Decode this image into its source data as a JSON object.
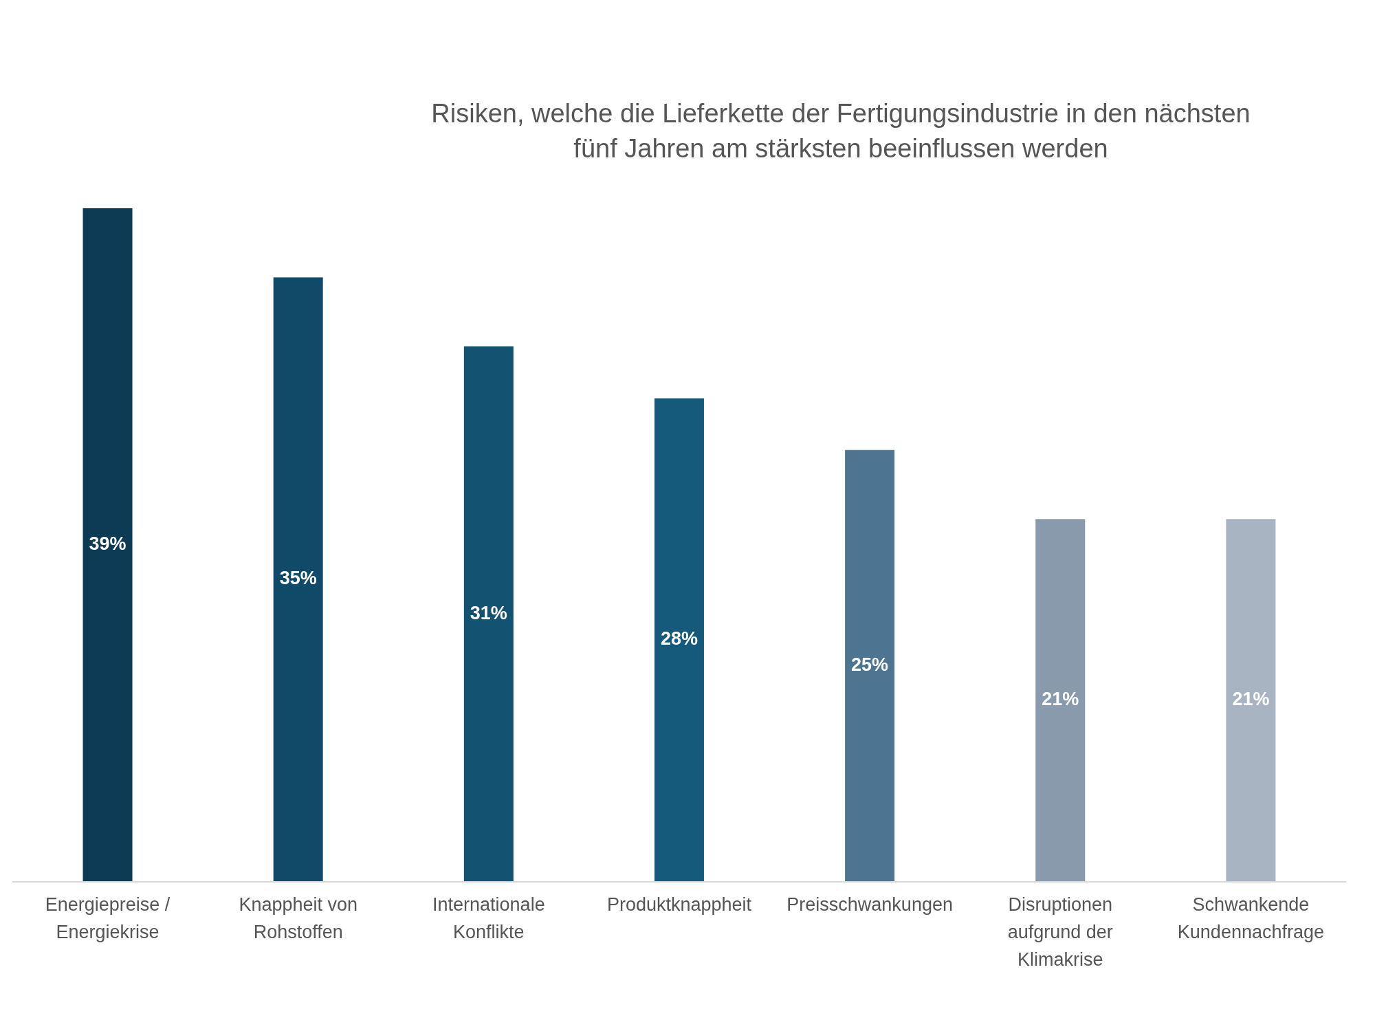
{
  "chart_data": {
    "type": "bar",
    "title": "Risiken, welche die Lieferkette der Fertigungsindustrie in den nächsten fünf Jahren am stärksten beeinflussen werden",
    "categories": [
      "Energiepreise / Energiekrise",
      "Knappheit von Rohstoffen",
      "Internationale Konflikte",
      "Produktknappheit",
      "Preisschwankungen",
      "Disruptionen aufgrund der Klimakrise",
      "Schwankende Kundennachfrage"
    ],
    "values": [
      39,
      35,
      31,
      28,
      25,
      21,
      21
    ],
    "value_labels": [
      "39%",
      "35%",
      "31%",
      "28%",
      "25%",
      "21%",
      "21%"
    ],
    "colors": [
      "#0d3b55",
      "#0f4a68",
      "#135270",
      "#155a7a",
      "#4d7490",
      "#8a9aad",
      "#a9b4c2"
    ],
    "ylim": [
      0,
      39
    ]
  }
}
